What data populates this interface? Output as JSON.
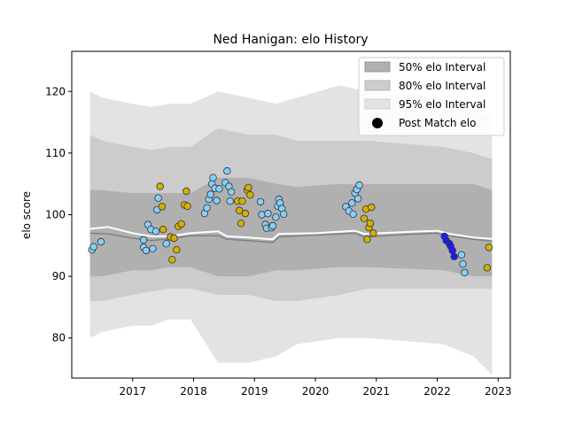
{
  "chart_data": {
    "type": "scatter",
    "title": "Ned Hanigan: elo History",
    "xlabel": "",
    "ylabel": "elo score",
    "xlim": [
      2016.0,
      2023.2
    ],
    "ylim": [
      73.5,
      126.5
    ],
    "x_ticks": [
      2017,
      2018,
      2019,
      2020,
      2021,
      2022,
      2023
    ],
    "y_ticks": [
      80,
      90,
      100,
      110,
      120
    ],
    "legend_position": "top-right",
    "legend": [
      "50% elo Interval",
      "80% elo Interval",
      "95% elo Interval",
      "Post Match elo"
    ],
    "colors": {
      "interval_50": "#b0b0b0",
      "interval_80": "#cccccc",
      "interval_95": "#e3e3e3",
      "median_line": "#808080",
      "mean_line": "#ffffff",
      "point_light_blue": "#87cefa",
      "point_gold": "#d4b000",
      "point_blue": "#1a1aff",
      "point_edge": "#333333"
    },
    "bands": {
      "x": [
        2016.3,
        2016.5,
        2017.0,
        2017.3,
        2017.6,
        2017.95,
        2018.4,
        2018.9,
        2019.35,
        2019.7,
        2020.4,
        2020.85,
        2022.1,
        2022.6,
        2022.9
      ],
      "p95_low": [
        80,
        81,
        82,
        82,
        83,
        83,
        76,
        76,
        77,
        79,
        80,
        80,
        79,
        77,
        74
      ],
      "p95_high": [
        120,
        119,
        118,
        117.5,
        118,
        118,
        120,
        119,
        118,
        119,
        121,
        120,
        119,
        117,
        116
      ],
      "p80_low": [
        86,
        86,
        87,
        87.5,
        88,
        88,
        87,
        87,
        86,
        86,
        87,
        88,
        88,
        88,
        88
      ],
      "p80_high": [
        113,
        112,
        111,
        110.5,
        111,
        111,
        114,
        113,
        113,
        112,
        112,
        112,
        111,
        110,
        109
      ],
      "p50_low": [
        90,
        90,
        91,
        91,
        91.5,
        91.5,
        90,
        90,
        91,
        91,
        91.5,
        91.5,
        91,
        90,
        90
      ],
      "p50_high": [
        104,
        104,
        103.5,
        103.5,
        103.5,
        103.5,
        106,
        106,
        105,
        104.5,
        105,
        105,
        105,
        105,
        104
      ]
    },
    "median_line": {
      "x": [
        2016.3,
        2016.6,
        2017.0,
        2017.3,
        2017.6,
        2017.95,
        2018.4,
        2018.55,
        2018.9,
        2019.3,
        2019.4,
        2020.0,
        2020.65,
        2020.8,
        2021.5,
        2022.0,
        2022.2,
        2022.6,
        2022.9
      ],
      "y": [
        97,
        96.9,
        96.2,
        95.8,
        96.1,
        96.6,
        96.6,
        96.0,
        95.8,
        95.5,
        96.4,
        96.7,
        97.0,
        96.4,
        96.8,
        97.0,
        96.6,
        96.0,
        95.7
      ]
    },
    "mean_line": {
      "x": [
        2016.3,
        2016.6,
        2017.0,
        2017.3,
        2017.6,
        2017.95,
        2018.4,
        2018.55,
        2018.9,
        2019.3,
        2019.4,
        2020.0,
        2020.65,
        2020.8,
        2021.5,
        2022.0,
        2022.2,
        2022.6,
        2022.9
      ],
      "y": [
        97.7,
        98.0,
        97.0,
        96.5,
        96.5,
        97.0,
        97.3,
        96.5,
        96.3,
        96.0,
        96.9,
        97.0,
        97.4,
        96.9,
        97.2,
        97.4,
        96.9,
        96.3,
        96.1
      ]
    },
    "series": [
      {
        "color_key": "point_light_blue",
        "points": [
          [
            2016.33,
            94.3
          ],
          [
            2016.36,
            94.8
          ],
          [
            2016.48,
            95.6
          ],
          [
            2017.18,
            95.9
          ],
          [
            2017.18,
            94.7
          ],
          [
            2017.22,
            94.2
          ],
          [
            2017.25,
            98.4
          ],
          [
            2017.3,
            97.6
          ],
          [
            2017.33,
            94.5
          ],
          [
            2017.38,
            97.3
          ],
          [
            2017.4,
            100.8
          ],
          [
            2017.42,
            102.7
          ],
          [
            2017.55,
            95.3
          ],
          [
            2018.18,
            100.2
          ],
          [
            2018.22,
            101.1
          ],
          [
            2018.25,
            102.5
          ],
          [
            2018.28,
            103.3
          ],
          [
            2018.3,
            105.0
          ],
          [
            2018.32,
            106.0
          ],
          [
            2018.35,
            104.3
          ],
          [
            2018.38,
            102.3
          ],
          [
            2018.42,
            104.2
          ],
          [
            2018.52,
            105.2
          ],
          [
            2018.55,
            107.1
          ],
          [
            2018.58,
            104.6
          ],
          [
            2018.6,
            102.2
          ],
          [
            2018.62,
            103.7
          ],
          [
            2019.1,
            102.1
          ],
          [
            2019.12,
            100.0
          ],
          [
            2019.18,
            98.4
          ],
          [
            2019.2,
            97.8
          ],
          [
            2019.22,
            100.2
          ],
          [
            2019.28,
            97.9
          ],
          [
            2019.3,
            98.2
          ],
          [
            2019.35,
            99.6
          ],
          [
            2019.38,
            101.4
          ],
          [
            2019.4,
            102.5
          ],
          [
            2019.42,
            101.9
          ],
          [
            2019.45,
            101.0
          ],
          [
            2019.48,
            100.1
          ],
          [
            2020.5,
            101.3
          ],
          [
            2020.55,
            100.6
          ],
          [
            2020.6,
            101.9
          ],
          [
            2020.62,
            100.1
          ],
          [
            2020.65,
            103.5
          ],
          [
            2020.68,
            104.1
          ],
          [
            2020.7,
            102.6
          ],
          [
            2020.72,
            104.8
          ],
          [
            2022.4,
            93.5
          ],
          [
            2022.42,
            92.0
          ],
          [
            2022.45,
            90.6
          ]
        ]
      },
      {
        "color_key": "point_gold",
        "points": [
          [
            2017.45,
            104.6
          ],
          [
            2017.48,
            101.3
          ],
          [
            2017.5,
            97.6
          ],
          [
            2017.62,
            96.4
          ],
          [
            2017.65,
            92.7
          ],
          [
            2017.68,
            96.2
          ],
          [
            2017.72,
            94.3
          ],
          [
            2017.75,
            98.1
          ],
          [
            2017.8,
            98.5
          ],
          [
            2017.85,
            101.6
          ],
          [
            2017.88,
            103.8
          ],
          [
            2017.9,
            101.4
          ],
          [
            2018.72,
            102.2
          ],
          [
            2018.75,
            100.7
          ],
          [
            2018.78,
            98.6
          ],
          [
            2018.8,
            102.2
          ],
          [
            2018.85,
            100.2
          ],
          [
            2018.88,
            104.0
          ],
          [
            2018.9,
            104.4
          ],
          [
            2018.93,
            103.2
          ],
          [
            2020.8,
            99.4
          ],
          [
            2020.83,
            100.9
          ],
          [
            2020.85,
            96.0
          ],
          [
            2020.88,
            97.9
          ],
          [
            2020.9,
            98.6
          ],
          [
            2020.92,
            101.2
          ],
          [
            2020.95,
            97.0
          ],
          [
            2022.82,
            91.4
          ],
          [
            2022.85,
            94.7
          ]
        ]
      },
      {
        "color_key": "point_blue",
        "points": [
          [
            2022.12,
            96.5
          ],
          [
            2022.15,
            95.8
          ],
          [
            2022.2,
            95.3
          ],
          [
            2022.22,
            94.9
          ],
          [
            2022.25,
            94.2
          ],
          [
            2022.28,
            93.2
          ]
        ]
      }
    ]
  }
}
